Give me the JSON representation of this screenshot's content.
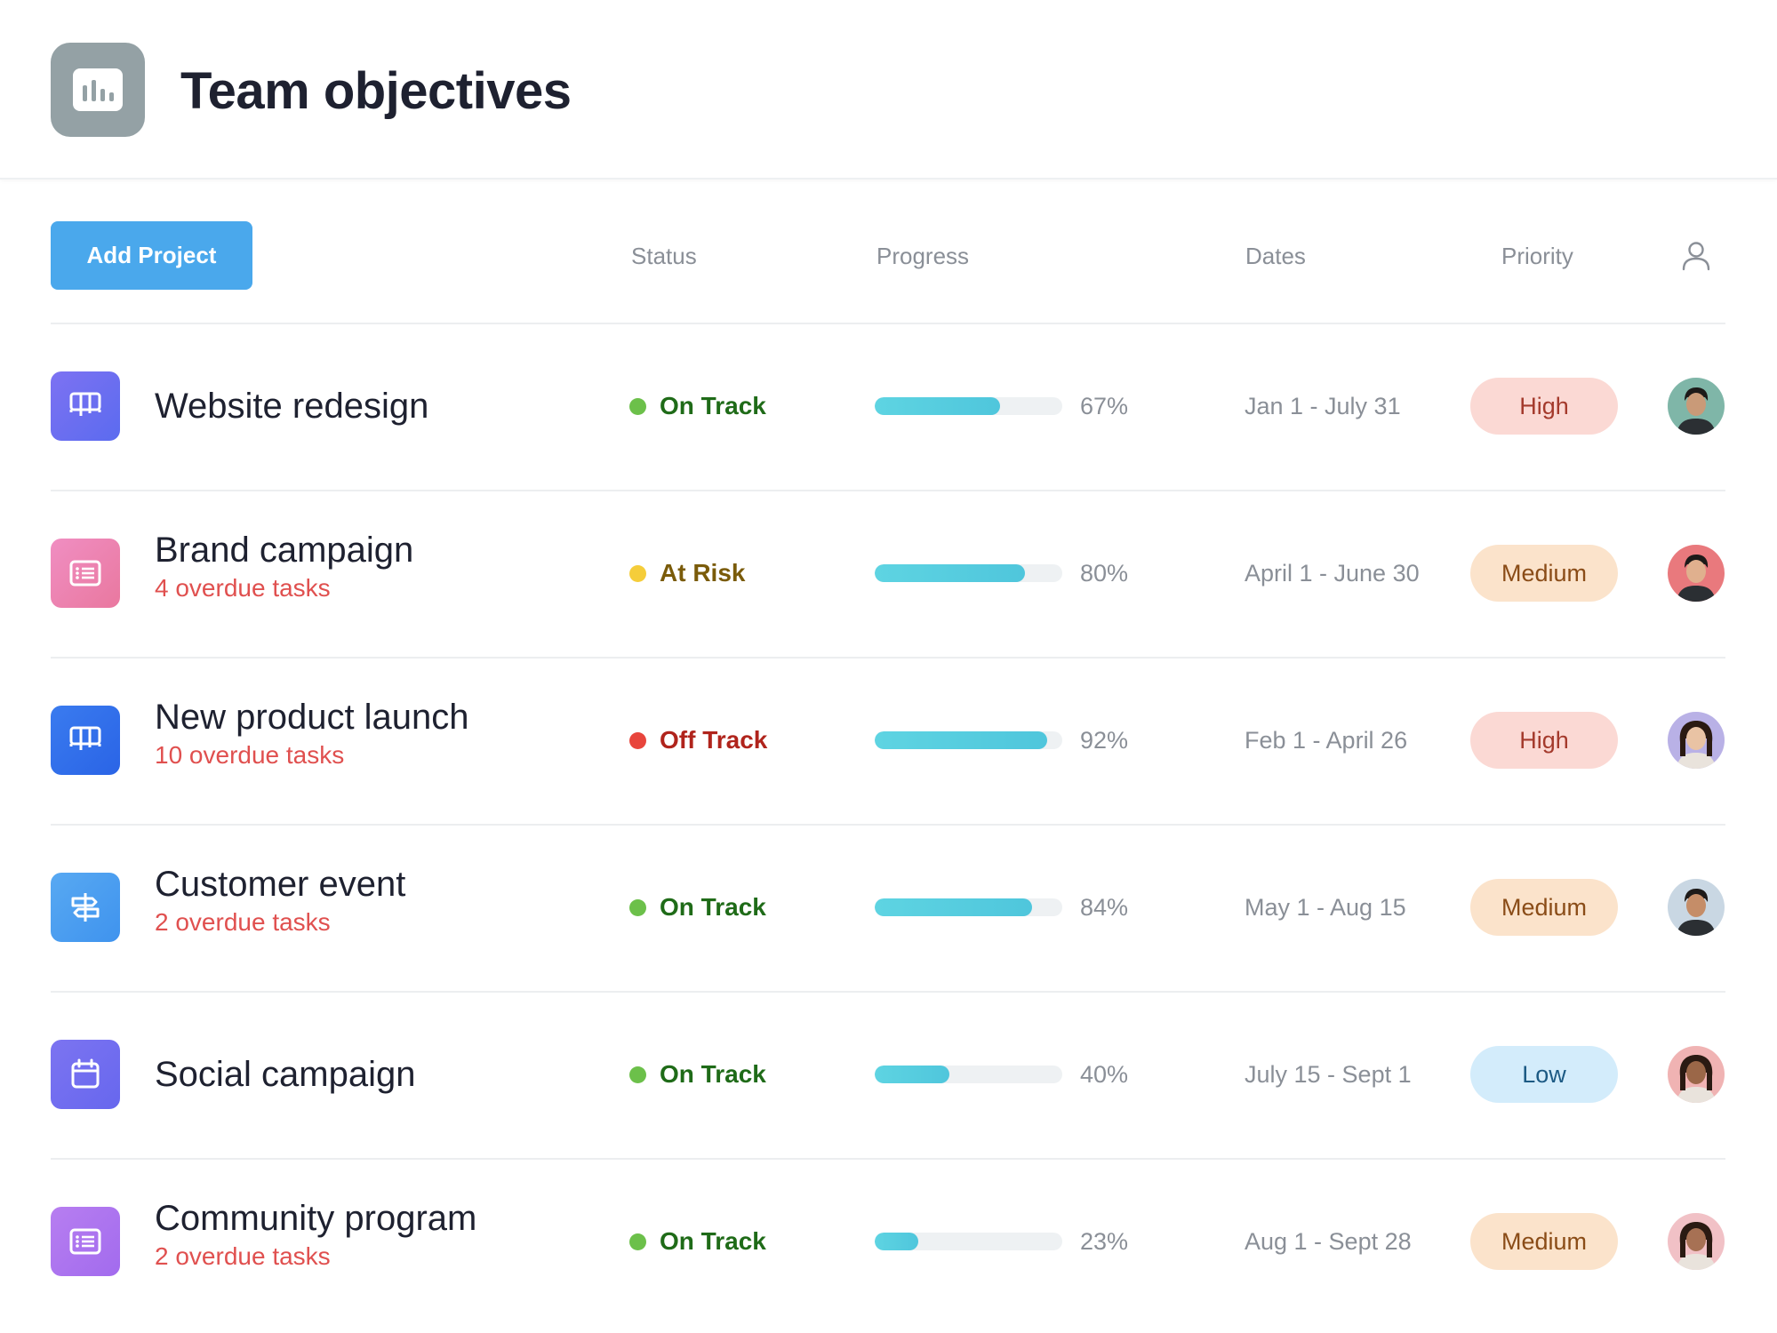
{
  "header": {
    "title": "Team objectives",
    "icon": "bar-chart-icon"
  },
  "toolbar": {
    "add_label": "Add Project"
  },
  "columns": {
    "status": "Status",
    "progress": "Progress",
    "dates": "Dates",
    "priority": "Priority",
    "assignee_icon": "person-icon"
  },
  "colors": {
    "on_track": "#6cc04a",
    "at_risk": "#f5cd3a",
    "off_track": "#e8453c",
    "high_bg": "#fbd9d4",
    "medium_bg": "#fbe3cb",
    "low_bg": "#d3ecfb",
    "progress_fill": "#56cfe0"
  },
  "projects": [
    {
      "name": "Website redesign",
      "overdue": "",
      "icon": "board-icon",
      "status": "On Track",
      "progress": 67,
      "progress_label": "67%",
      "dates": "Jan 1 - July 31",
      "priority": "High",
      "avatar": "avatar-man"
    },
    {
      "name": "Brand campaign",
      "overdue": "4 overdue tasks",
      "icon": "list-icon",
      "status": "At Risk",
      "progress": 80,
      "progress_label": "80%",
      "dates": "April 1 - June 30",
      "priority": "Medium",
      "avatar": "avatar-man"
    },
    {
      "name": "New product launch",
      "overdue": "10 overdue tasks",
      "icon": "board-icon",
      "status": "Off Track",
      "progress": 92,
      "progress_label": "92%",
      "dates": "Feb 1 - April 26",
      "priority": "High",
      "avatar": "avatar-woman"
    },
    {
      "name": "Customer event",
      "overdue": "2 overdue tasks",
      "icon": "signpost-icon",
      "status": "On Track",
      "progress": 84,
      "progress_label": "84%",
      "dates": "May 1 - Aug 15",
      "priority": "Medium",
      "avatar": "avatar-man"
    },
    {
      "name": "Social campaign",
      "overdue": "",
      "icon": "calendar-icon",
      "status": "On Track",
      "progress": 40,
      "progress_label": "40%",
      "dates": "July 15 - Sept 1",
      "priority": "Low",
      "avatar": "avatar-woman"
    },
    {
      "name": "Community program",
      "overdue": "2 overdue tasks",
      "icon": "list-icon",
      "status": "On Track",
      "progress": 23,
      "progress_label": "23%",
      "dates": "Aug 1 - Sept 28",
      "priority": "Medium",
      "avatar": "avatar-woman"
    }
  ]
}
